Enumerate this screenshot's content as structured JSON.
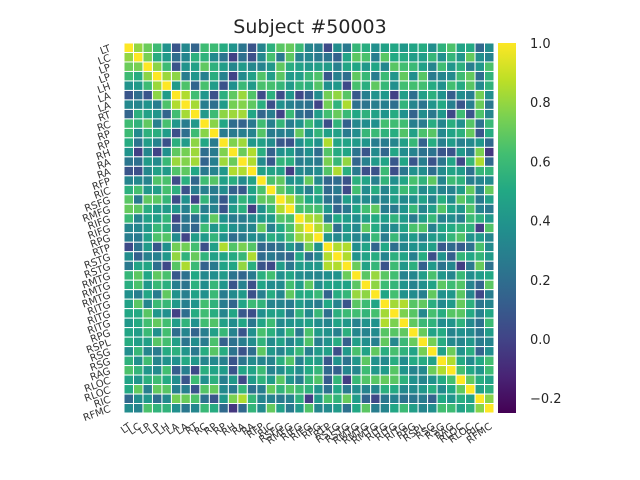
{
  "chart_data": {
    "type": "heatmap",
    "title": "Subject #50003",
    "labels": [
      "LT",
      "LC",
      "LP",
      "LP",
      "LH",
      "LA",
      "LA",
      "RT",
      "RC",
      "RP",
      "RP",
      "RH",
      "RA",
      "RA",
      "RFP",
      "RIC",
      "RSFG",
      "RMFG",
      "RIFG",
      "RIFG",
      "RPG",
      "RTP",
      "RSTG",
      "RSTG",
      "RMTG",
      "RMTG",
      "RMTG",
      "RITG",
      "RITG",
      "RITG",
      "RPG",
      "RSPL",
      "RSG",
      "RSG",
      "RAG",
      "RLOC",
      "RLOC",
      "RIC",
      "RFMC"
    ],
    "colorbar": {
      "min": -0.25,
      "max": 1.0,
      "ticks": [
        "1.0",
        "0.8",
        "0.6",
        "0.4",
        "0.2",
        "0.0",
        "−0.2"
      ],
      "tick_values": [
        1.0,
        0.8,
        0.6,
        0.4,
        0.2,
        0.0,
        -0.2
      ],
      "colormap": "viridis"
    },
    "diagonal_value": 1.0,
    "value_range_offdiagonal": [
      -0.2,
      0.85
    ],
    "grid": true
  }
}
